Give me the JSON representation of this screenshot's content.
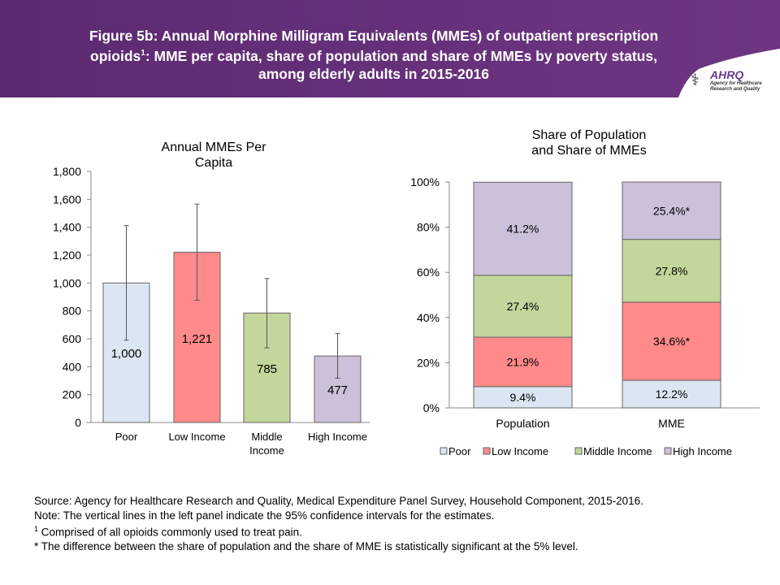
{
  "header": {
    "title_line1": "Figure 5b: Annual Morphine Milligram Equivalents (MMEs) of outpatient prescription",
    "title_line2a": "opioids",
    "title_sup": "1",
    "title_line2b": ": MME per capita, share of population and share of MMEs by poverty status,",
    "title_line3": "among elderly adults in 2015-2016",
    "logo_text": "AHRQ",
    "logo_sub": "Agency for Healthcare Research and Quality",
    "header_color": "#5c2a70"
  },
  "chart_data": [
    {
      "type": "bar",
      "title": "Annual MMEs Per Capita",
      "title_lines": [
        "Annual MMEs Per",
        "Capita"
      ],
      "categories": [
        "Poor",
        "Low Income",
        "Middle Income",
        "High Income"
      ],
      "category_lines": [
        [
          "Poor"
        ],
        [
          "Low Income"
        ],
        [
          "Middle",
          "Income"
        ],
        [
          "High Income"
        ]
      ],
      "values": [
        1000,
        1221,
        785,
        477
      ],
      "data_labels": [
        "1,000",
        "1,221",
        "785",
        "477"
      ],
      "ci_lower": [
        590,
        876,
        535,
        318
      ],
      "ci_upper": [
        1412,
        1566,
        1032,
        638
      ],
      "ylim": [
        0,
        1800
      ],
      "yticks": [
        0,
        200,
        400,
        600,
        800,
        1000,
        1200,
        1400,
        1600,
        1800
      ],
      "ytick_labels": [
        "0",
        "200",
        "400",
        "600",
        "800",
        "1,000",
        "1,200",
        "1,400",
        "1,600",
        "1,800"
      ],
      "colors": [
        "#dce6f2",
        "#ff8a8a",
        "#c3d69b",
        "#ccc0da"
      ],
      "grid": false
    },
    {
      "type": "bar",
      "stacked": true,
      "title": "Share of Population and Share of MMEs",
      "title_lines": [
        "Share of Population",
        "and Share of MMEs"
      ],
      "categories": [
        "Population",
        "MME"
      ],
      "series": [
        {
          "name": "Poor",
          "values": [
            9.4,
            12.2
          ],
          "labels": [
            "9.4%",
            "12.2%"
          ],
          "color": "#dce6f2"
        },
        {
          "name": "Low Income",
          "values": [
            21.9,
            34.6
          ],
          "labels": [
            "21.9%",
            "34.6%*"
          ],
          "color": "#ff8a8a"
        },
        {
          "name": "Middle Income",
          "values": [
            27.4,
            27.8
          ],
          "labels": [
            "27.4%",
            "27.8%"
          ],
          "color": "#c3d69b"
        },
        {
          "name": "High Income",
          "values": [
            41.2,
            25.4
          ],
          "labels": [
            "41.2%",
            "25.4%*"
          ],
          "color": "#ccc0da"
        }
      ],
      "ylim": [
        0,
        100
      ],
      "yticks": [
        0,
        20,
        40,
        60,
        80,
        100
      ],
      "ytick_labels": [
        "0%",
        "20%",
        "40%",
        "60%",
        "80%",
        "100%"
      ],
      "legend": "bottom",
      "grid": false
    }
  ],
  "notes": {
    "source": "Source: Agency for Healthcare Research and Quality, Medical Expenditure Panel Survey, Household Component, 2015-2016.",
    "note": "Note: The vertical lines in the left panel indicate the 95% confidence intervals for the estimates.",
    "fn1_mark": "1",
    "fn1": " Comprised of all opioids commonly used to treat pain.",
    "fn2": "* The difference between the share of population and the share of MME is statistically significant at the 5% level."
  }
}
